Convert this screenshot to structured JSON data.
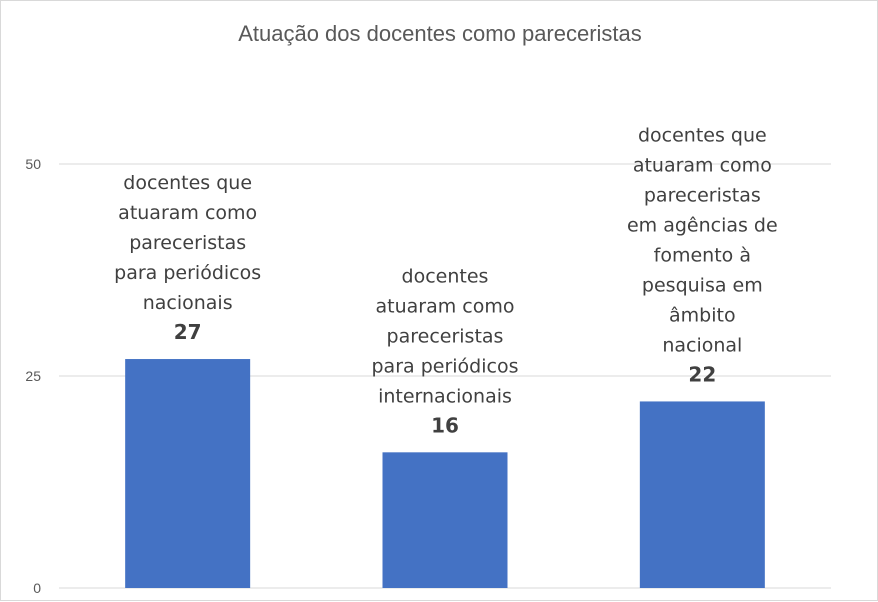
{
  "chart_data": {
    "type": "bar",
    "title": "Atuação dos docentes como pareceristas",
    "xlabel": "",
    "ylabel": "",
    "ylim": [
      0,
      50
    ],
    "yticks": [
      0,
      25,
      50
    ],
    "grid": true,
    "bar_color": "#4472C4",
    "categories": [
      "docentes que atuaram como pareceristas para periódicos nacionais",
      "docentes atuaram como pareceristas para periódicos internacionais",
      "docentes que atuaram como pareceristas em agências de fomento à pesquisa em âmbito nacional"
    ],
    "category_lines": [
      [
        "docentes que",
        "atuaram como",
        "pareceristas",
        "para periódicos",
        "nacionais"
      ],
      [
        "docentes",
        "atuaram como",
        "pareceristas",
        "para periódicos",
        "internacionais"
      ],
      [
        "docentes que",
        "atuaram como",
        "pareceristas",
        "em agências de",
        "fomento à",
        "pesquisa em",
        "âmbito",
        "nacional"
      ]
    ],
    "values": [
      27,
      16,
      22
    ]
  }
}
